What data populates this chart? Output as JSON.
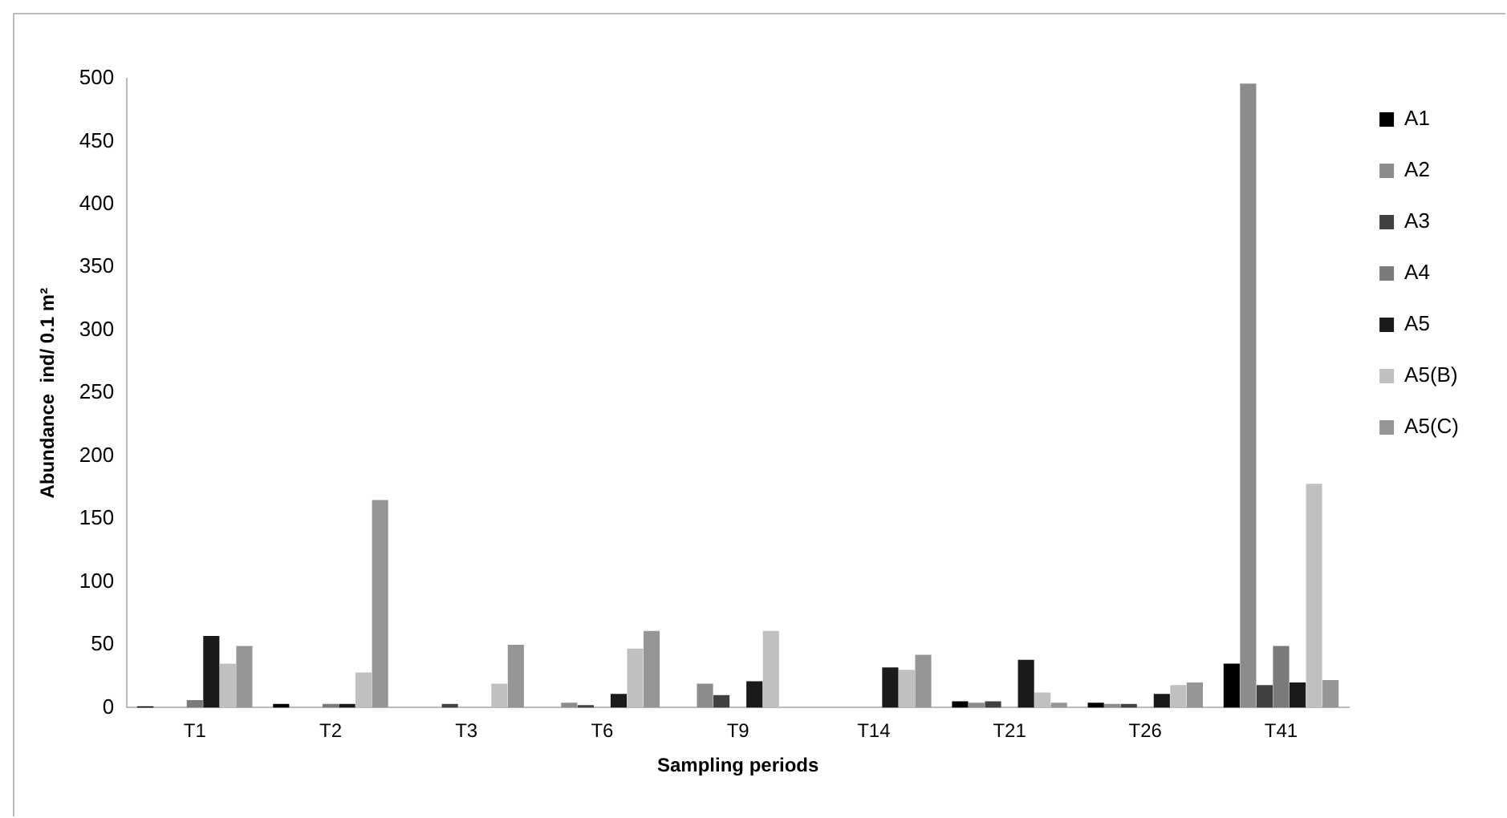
{
  "chart_data": {
    "type": "bar",
    "xlabel": "Sampling periods",
    "ylabel": "Abundance  ind/ 0.1 m²",
    "categories": [
      "T1",
      "T2",
      "T3",
      "T6",
      "T9",
      "T14",
      "T21",
      "T26",
      "T41"
    ],
    "series": [
      {
        "name": "A1",
        "color": "#000000",
        "values": [
          1,
          3,
          0,
          0,
          0,
          0,
          5,
          4,
          35
        ]
      },
      {
        "name": "A2",
        "color": "#8c8c8c",
        "values": [
          0,
          0,
          0,
          4,
          19,
          0,
          4,
          3,
          496
        ]
      },
      {
        "name": "A3",
        "color": "#404040",
        "values": [
          0,
          0,
          3,
          2,
          10,
          0,
          5,
          3,
          18
        ]
      },
      {
        "name": "A4",
        "color": "#7a7a7a",
        "values": [
          6,
          3,
          0,
          0,
          0,
          0,
          0,
          0,
          49
        ]
      },
      {
        "name": "A5",
        "color": "#1a1a1a",
        "values": [
          57,
          3,
          0,
          11,
          21,
          32,
          38,
          11,
          20
        ]
      },
      {
        "name": "A5(B)",
        "color": "#c0c0c0",
        "values": [
          35,
          28,
          19,
          47,
          61,
          30,
          12,
          18,
          178
        ]
      },
      {
        "name": "A5(C)",
        "color": "#969696",
        "values": [
          49,
          165,
          50,
          61,
          0,
          42,
          4,
          20,
          22
        ]
      }
    ],
    "ylim": [
      0,
      500
    ],
    "yticks": [
      0,
      50,
      100,
      150,
      200,
      250,
      300,
      350,
      400,
      450,
      500
    ],
    "grid": false,
    "legend": "right"
  }
}
